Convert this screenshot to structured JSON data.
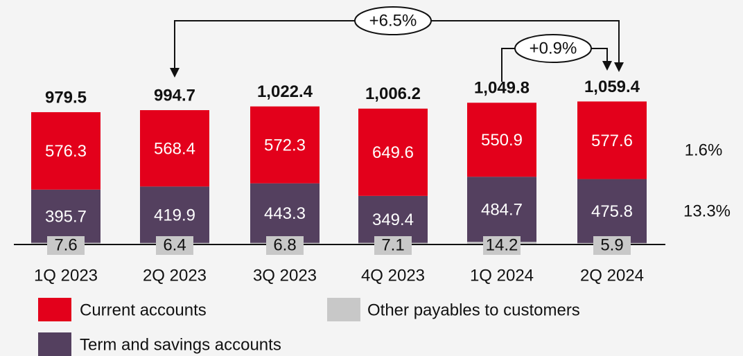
{
  "chart_data": {
    "type": "stacked_bar",
    "categories": [
      "1Q 2023",
      "2Q 2023",
      "3Q 2023",
      "4Q 2023",
      "1Q 2024",
      "2Q 2024"
    ],
    "series": [
      {
        "name": "Current accounts",
        "color": "#e3001b",
        "values": [
          576.3,
          568.4,
          572.3,
          649.6,
          550.9,
          577.6
        ]
      },
      {
        "name": "Other payables to customers",
        "color": "#c8c8c8",
        "values": [
          7.6,
          6.4,
          6.8,
          7.1,
          14.2,
          5.9
        ]
      },
      {
        "name": "Term and savings accounts",
        "color": "#54405f",
        "values": [
          395.7,
          419.9,
          443.3,
          349.4,
          484.7,
          475.8
        ]
      }
    ],
    "totals": {
      "values": [
        979.5,
        994.7,
        1022.4,
        1006.2,
        1049.8,
        1059.4
      ],
      "value_labels": [
        "979.5",
        "994.7",
        "1,022.4",
        "1,006.2",
        "1,049.8",
        "1,059.4"
      ]
    },
    "annotations": [
      "+6.5%",
      "+0.9%",
      "1.6%",
      "13.3%"
    ]
  }
}
